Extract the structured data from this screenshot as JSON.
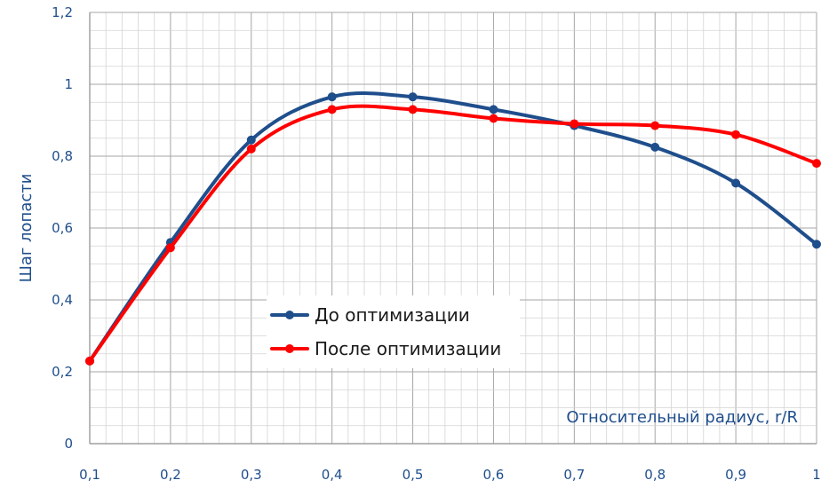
{
  "chart_data": {
    "type": "line",
    "title": "",
    "xlabel": "Относительный радиус, r/R",
    "ylabel": "Шаг лопасти",
    "xlim": [
      0.1,
      1.0
    ],
    "ylim": [
      0,
      1.2
    ],
    "x_ticks": [
      "0,1",
      "0,2",
      "0,3",
      "0,4",
      "0,5",
      "0,6",
      "0,7",
      "0,8",
      "0,9",
      "1"
    ],
    "y_ticks": [
      "0",
      "0,2",
      "0,4",
      "0,6",
      "0,8",
      "1",
      "1,2"
    ],
    "x": [
      0.1,
      0.2,
      0.3,
      0.4,
      0.5,
      0.6,
      0.7,
      0.8,
      0.9,
      1.0
    ],
    "series": [
      {
        "name": "До оптимизации",
        "color": "#1f4e8c",
        "values": [
          0.23,
          0.56,
          0.845,
          0.965,
          0.965,
          0.93,
          0.885,
          0.825,
          0.725,
          0.555
        ]
      },
      {
        "name": "После оптимизации",
        "color": "#ff0000",
        "values": [
          0.23,
          0.545,
          0.82,
          0.93,
          0.93,
          0.905,
          0.89,
          0.885,
          0.86,
          0.78
        ]
      }
    ],
    "grid": true,
    "legend_position": "center-left",
    "axis_color": "#1f4e8c"
  }
}
